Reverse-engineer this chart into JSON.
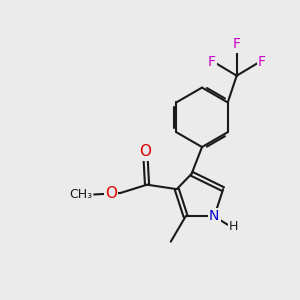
{
  "bg_color": "#ebebeb",
  "bond_color": "#1a1a1a",
  "bond_width": 1.5,
  "atom_colors": {
    "O": "#dd0000",
    "N": "#0000cc",
    "F": "#cc00cc",
    "C": "#1a1a1a",
    "H": "#1a1a1a"
  },
  "font_size_atom": 10,
  "font_size_small": 9
}
